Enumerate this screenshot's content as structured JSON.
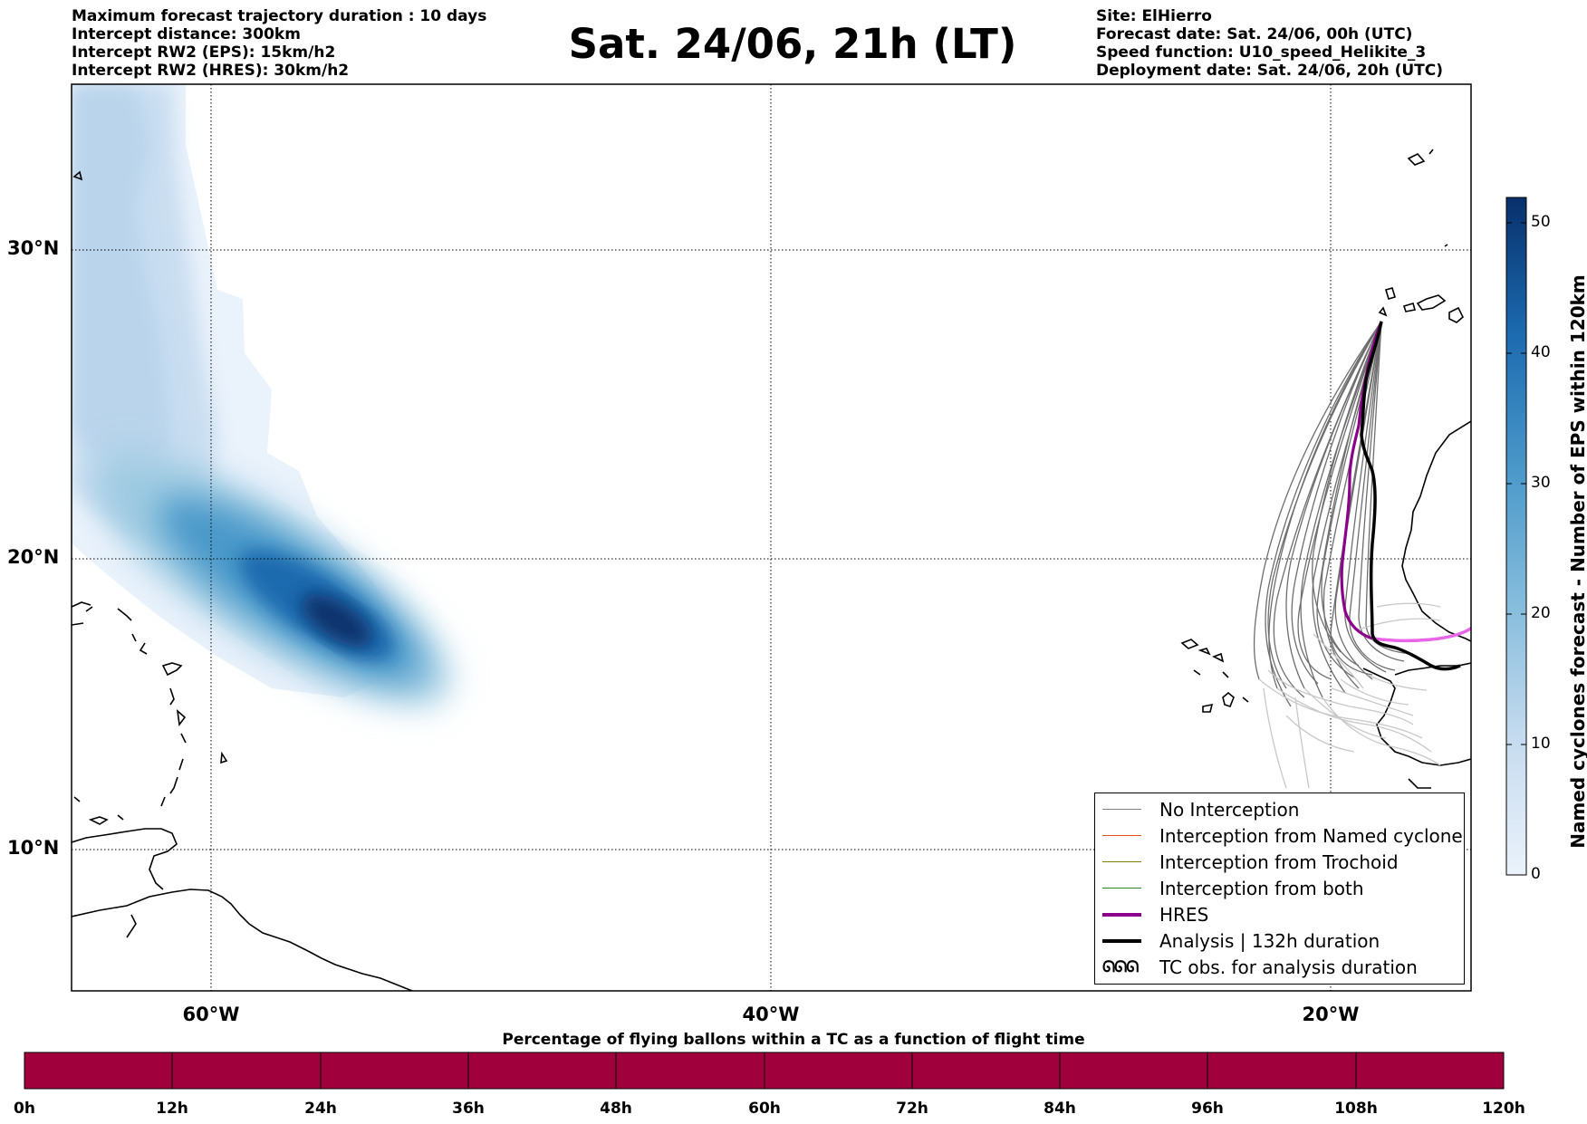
{
  "title": "Sat. 24/06, 21h (LT)",
  "info_left": [
    "Maximum forecast trajectory duration : 10 days",
    "Intercept distance: 300km",
    "Intercept RW2 (EPS):  15km/h2",
    "Intercept RW2 (HRES): 30km/h2"
  ],
  "info_right": [
    "Site: ElHierro",
    "Forecast date: Sat. 24/06, 00h (UTC)",
    "Speed function: U10_speed_Helikite_3",
    "Deployment date: Sat. 24/06, 20h (UTC)"
  ],
  "map": {
    "lat_labels": [
      "30°N",
      "20°N",
      "10°N"
    ],
    "lon_labels": [
      "60°W",
      "40°W",
      "20°W"
    ],
    "gridlines": "dotted"
  },
  "colorbar": {
    "title": "Named cyclones forecast - Number of EPS within 120km",
    "ticks": [
      "0",
      "10",
      "20",
      "30",
      "40",
      "50"
    ],
    "max": 52,
    "colors": {
      "low": "#eaf2fb",
      "high": "#08306b"
    }
  },
  "legend": {
    "items": [
      {
        "label": "No Interception",
        "color": "#808080",
        "style": "thin"
      },
      {
        "label": "Interception from Named cyclone",
        "color": "#e8501e",
        "style": "thin"
      },
      {
        "label": "Interception from Trochoid",
        "color": "#808000",
        "style": "thin"
      },
      {
        "label": "Interception from both",
        "color": "#228b22",
        "style": "thin"
      },
      {
        "label": "HRES",
        "color": "#8b008b",
        "style": "thick"
      },
      {
        "label": "Analysis | 132h duration",
        "color": "#000000",
        "style": "thick"
      },
      {
        "label": "TC obs. for analysis duration",
        "color": "#000000",
        "style": "symbol",
        "symbol_text": "ᘏᘏᘏ"
      }
    ]
  },
  "percentage_bar": {
    "title": "Percentage of flying ballons within a TC as a function of flight time",
    "ticks": [
      "0h",
      "12h",
      "24h",
      "36h",
      "48h",
      "60h",
      "72h",
      "84h",
      "96h",
      "108h",
      "120h"
    ],
    "fill_color": "#a0003c"
  }
}
